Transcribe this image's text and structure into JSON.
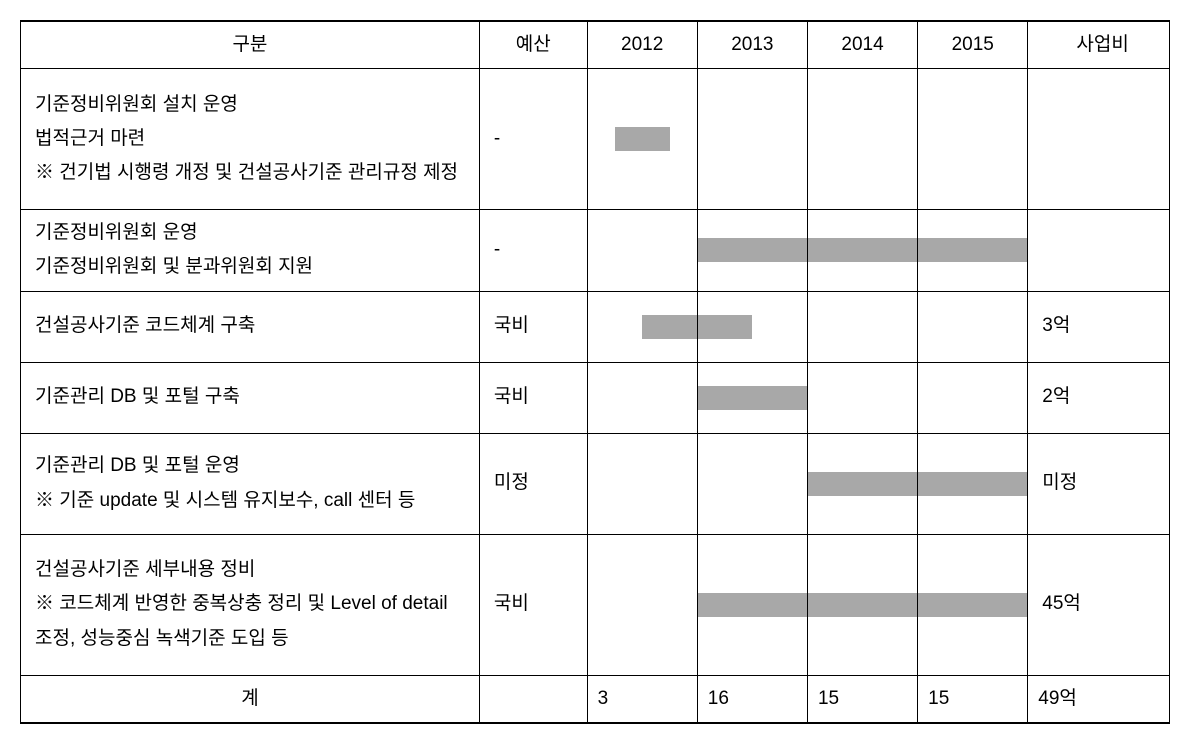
{
  "table": {
    "headers": {
      "category": "구분",
      "budget": "예산",
      "y2012": "2012",
      "y2013": "2013",
      "y2014": "2014",
      "y2015": "2015",
      "cost": "사업비"
    },
    "rows": [
      {
        "desc": "기준정비위원회 설치 운영\n법적근거 마련\n※ 건기법 시행령 개정 및 건설공사기준 관리규정 제정",
        "budget": "-",
        "cost": "",
        "bars": {
          "2012": "center",
          "2013": "",
          "2014": "",
          "2015": ""
        }
      },
      {
        "desc": "기준정비위원회 운영\n기준정비위원회 및 분과위원회 지원",
        "budget": "-",
        "cost": "",
        "bars": {
          "2012": "",
          "2013": "full",
          "2014": "full",
          "2015": "full"
        }
      },
      {
        "desc": "건설공사기준 코드체계 구축",
        "budget": "국비",
        "cost": "3억",
        "bars": {
          "2012": "right-half",
          "2013": "left-half",
          "2014": "",
          "2015": ""
        }
      },
      {
        "desc": "기준관리 DB 및 포털 구축",
        "budget": "국비",
        "cost": "2억",
        "bars": {
          "2012": "",
          "2013": "full",
          "2014": "",
          "2015": ""
        }
      },
      {
        "desc": "기준관리 DB 및 포털 운영\n※ 기준 update 및 시스템 유지보수, call 센터 등",
        "budget": "미정",
        "cost": "미정",
        "bars": {
          "2012": "",
          "2013": "",
          "2014": "full",
          "2015": "full"
        }
      },
      {
        "desc": "건설공사기준 세부내용 정비\n※ 코드체계 반영한 중복상충 정리 및 Level of detail 조정, 성능중심 녹색기준 도입 등",
        "budget": "국비",
        "cost": "45억",
        "bars": {
          "2012": "",
          "2013": "full",
          "2014": "full",
          "2015": "full"
        }
      }
    ],
    "total": {
      "label": "계",
      "budget": "",
      "y2012": "3",
      "y2013": "16",
      "y2014": "15",
      "y2015": "15",
      "cost": "49억"
    },
    "styling": {
      "bar_color": "#a8a8a8",
      "border_color": "#000000",
      "background_color": "#ffffff",
      "font_size": 19,
      "row_heights": [
        "xtall",
        "med",
        "med",
        "med",
        "tall",
        "xtall"
      ]
    }
  }
}
